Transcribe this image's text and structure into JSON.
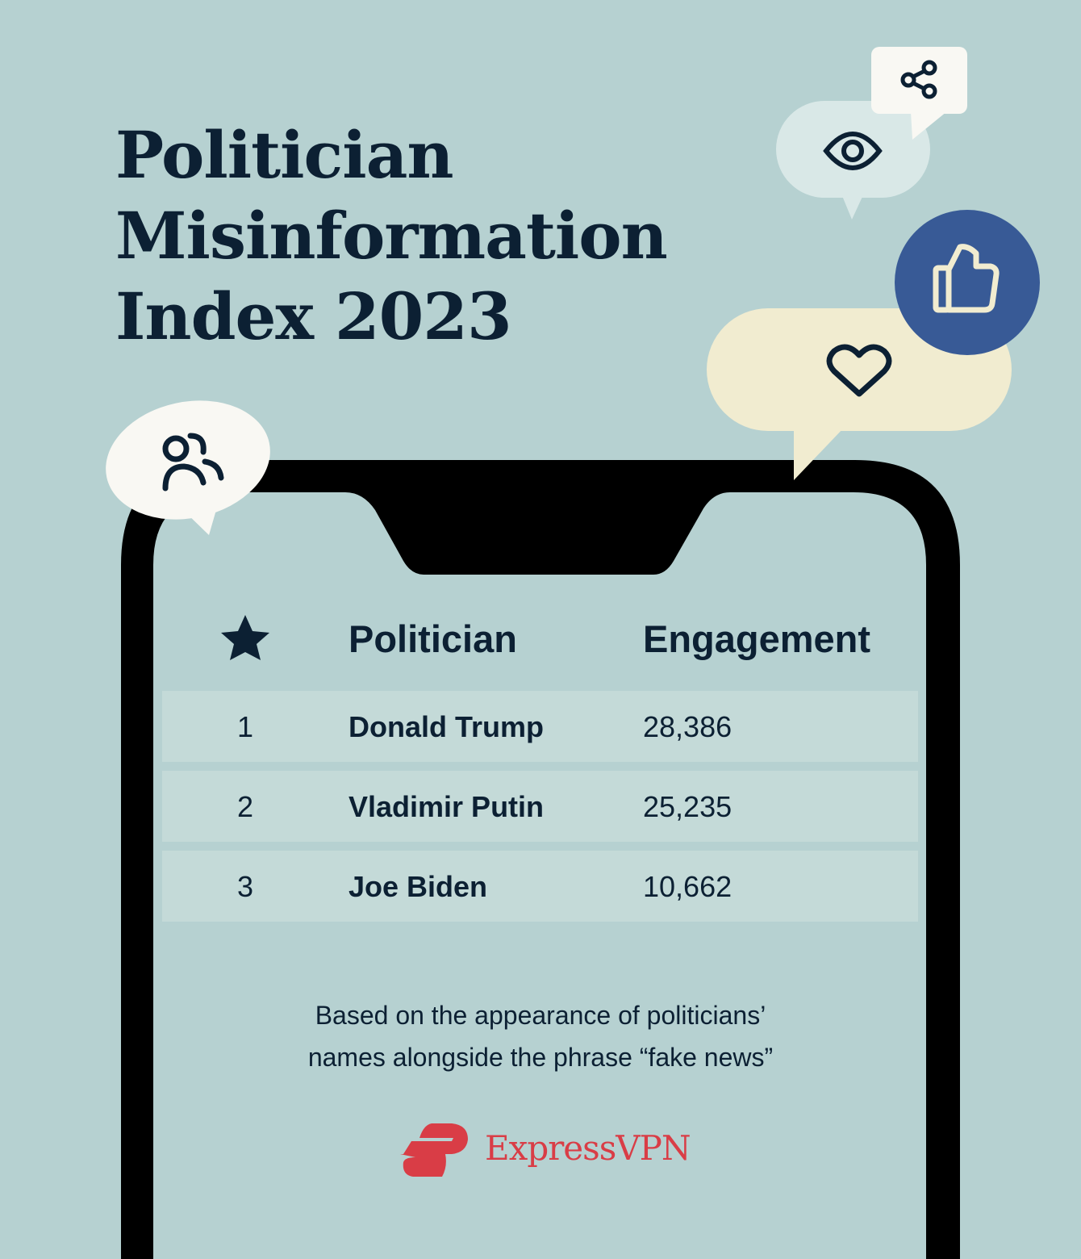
{
  "title": {
    "lines": [
      "Politician",
      "Misinformation",
      "Index 2023"
    ]
  },
  "table": {
    "header": {
      "rank_icon": "star-icon",
      "politician": "Politician",
      "engagement": "Engagement"
    },
    "rows": [
      {
        "rank": "1",
        "politician": "Donald Trump",
        "engagement": "28,386"
      },
      {
        "rank": "2",
        "politician": "Vladimir Putin",
        "engagement": "25,235"
      },
      {
        "rank": "3",
        "politician": "Joe Biden",
        "engagement": "10,662"
      }
    ]
  },
  "note": {
    "lines": [
      "Based on the appearance of politicians’",
      "names alongside the phrase “fake news”"
    ]
  },
  "brand": {
    "name": "ExpressVPN",
    "color": "#d93d46"
  },
  "icons": [
    "share-icon",
    "eye-icon",
    "thumbs-up-icon",
    "heart-icon",
    "users-icon",
    "star-icon"
  ],
  "colors": {
    "background": "#b6d1d1",
    "text": "#0c2033",
    "row": "#c4dad8",
    "thumb_circle": "#385a96",
    "heart_bubble": "#f1ecd0",
    "eye_bubble": "#d9e8e7",
    "white_bubble": "#f9f8f3"
  }
}
